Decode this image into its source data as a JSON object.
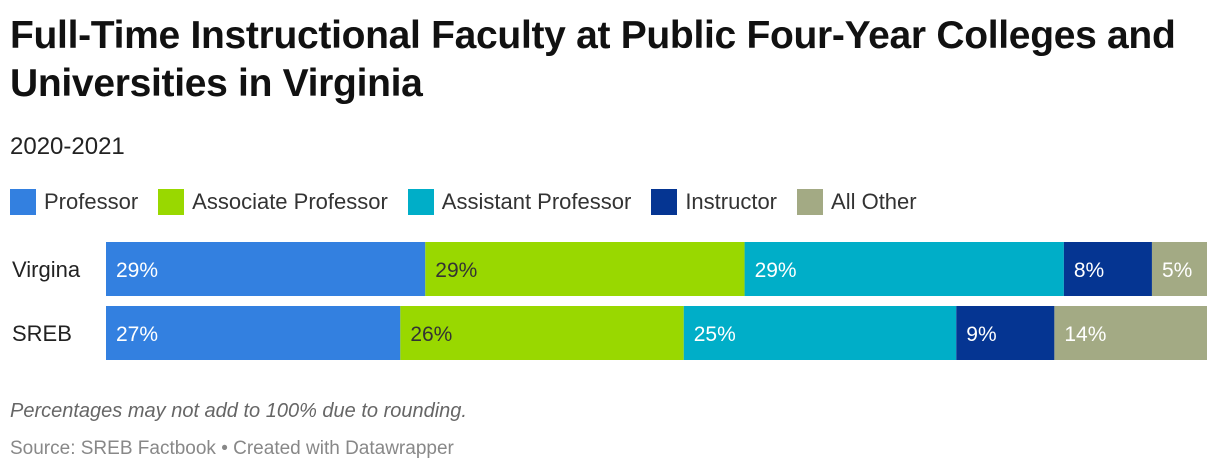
{
  "header": {
    "title": "Full-Time Instructional Faculty at Public Four-Year Colleges and Universities in Virginia",
    "subtitle": "2020-2021"
  },
  "footer": {
    "note": "Percentages may not add to 100% due to rounding.",
    "source": "Source: SREB Factbook • Created with Datawrapper"
  },
  "chart_data": {
    "type": "bar",
    "orientation": "horizontal",
    "stacked": true,
    "normalized": true,
    "categories": [
      "Virgina",
      "SREB"
    ],
    "series": [
      {
        "name": "Professor",
        "values": [
          29,
          27
        ],
        "labels": [
          "29%",
          "27%"
        ],
        "color": "#3380e0",
        "text_color": "#ffffff"
      },
      {
        "name": "Associate Professor",
        "values": [
          29,
          26
        ],
        "labels": [
          "29%",
          "26%"
        ],
        "color": "#99d800",
        "text_color": "#333333"
      },
      {
        "name": "Assistant Professor",
        "values": [
          29,
          25
        ],
        "labels": [
          "29%",
          "25%"
        ],
        "color": "#00aec8",
        "text_color": "#ffffff"
      },
      {
        "name": "Instructor",
        "values": [
          8,
          9
        ],
        "labels": [
          "8%",
          "9%"
        ],
        "color": "#053592",
        "text_color": "#ffffff"
      },
      {
        "name": "All Other",
        "values": [
          5,
          14
        ],
        "labels": [
          "5%",
          "14%"
        ],
        "color": "#a3aa84",
        "text_color": "#ffffff"
      }
    ],
    "legend_position": "top-left",
    "grid": false
  }
}
